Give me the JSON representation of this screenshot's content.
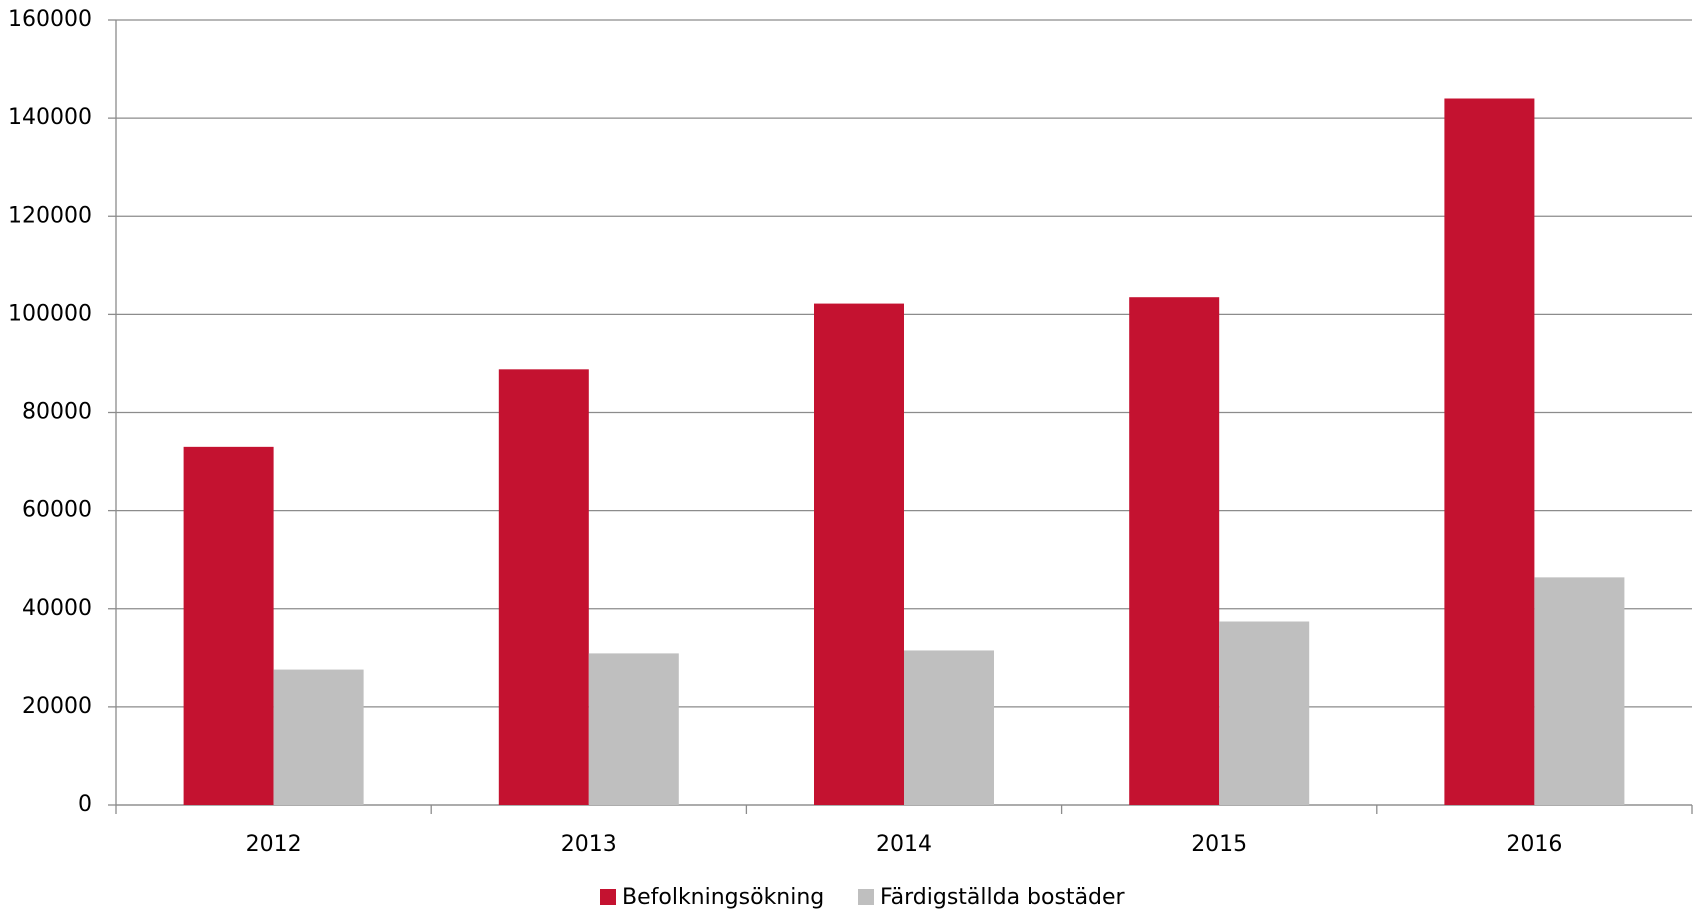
{
  "chart_data": {
    "type": "bar",
    "categories": [
      "2012",
      "2013",
      "2014",
      "2015",
      "2016"
    ],
    "series": [
      {
        "name": "Befolkningsökning",
        "color": "#c41230",
        "values": [
          73000,
          88800,
          102200,
          103500,
          144000
        ]
      },
      {
        "name": "Färdigställda bostäder",
        "color": "#bfbfbf",
        "values": [
          27600,
          30900,
          31500,
          37400,
          46400
        ]
      }
    ],
    "ylim": [
      0,
      160000
    ],
    "yticks": [
      0,
      20000,
      40000,
      60000,
      80000,
      100000,
      120000,
      140000,
      160000
    ],
    "grid": true,
    "legend": "bottom"
  }
}
